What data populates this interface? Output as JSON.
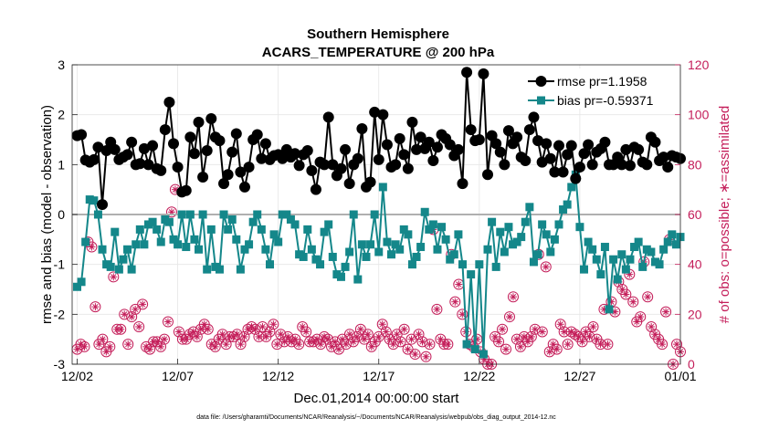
{
  "chart_data": {
    "type": "line",
    "title": "Southern Hemisphere",
    "subtitle": "ACARS_TEMPERATURE @ 200 hPa",
    "xlabel": "Dec.01,2014 00:00:00 start",
    "ylabel": "rmse and bias (model - observation)",
    "ylabel_right": "# of obs: o=possible; ∗=assimilated",
    "footnote": "data file: /Users/gharamti/Documents/NCAR/Reanalysis/~/Documents/NCAR/Reanalysis/webpub/obs_diag_output_2014-12.nc",
    "x_ticks": [
      "12/02",
      "12/07",
      "12/12",
      "12/17",
      "12/22",
      "12/27",
      "01/01"
    ],
    "x_tick_days": [
      2,
      7,
      12,
      17,
      22,
      27,
      32
    ],
    "xlim": [
      1.75,
      32
    ],
    "ylim": [
      -3,
      3
    ],
    "y_ticks": [
      "-3",
      "-2",
      "-1",
      "0",
      "1",
      "2",
      "3"
    ],
    "ylim_right": [
      0,
      120
    ],
    "y_ticks_right": [
      "0",
      "20",
      "40",
      "60",
      "80",
      "100",
      "120"
    ],
    "grid": true,
    "legend_position": "top-right",
    "zero_line": 0,
    "colors": {
      "rmse": "#000000",
      "bias": "#14878a",
      "obs": "#c41e5a",
      "zero": "#b0b0b0"
    },
    "series": [
      {
        "name": "rmse pr=1.1958",
        "color": "#000000",
        "marker": "circle",
        "values": [
          1.58,
          1.6,
          1.09,
          1.05,
          1.1,
          1.35,
          0.2,
          1.28,
          1.45,
          1.3,
          1.1,
          1.15,
          1.2,
          1.45,
          1.0,
          1.02,
          1.32,
          1.0,
          1.38,
          0.92,
          0.88,
          1.7,
          2.25,
          1.42,
          0.95,
          0.45,
          0.48,
          1.55,
          1.22,
          1.85,
          0.75,
          1.28,
          1.92,
          1.55,
          1.48,
          0.62,
          0.8,
          1.25,
          1.62,
          0.85,
          0.55,
          0.95,
          1.5,
          1.6,
          1.12,
          1.42,
          1.1,
          1.18,
          1.2,
          1.12,
          1.3,
          1.15,
          1.22,
          0.98,
          1.2,
          1.28,
          0.88,
          0.5,
          1.05,
          1.0,
          1.95,
          1.0,
          0.78,
          0.92,
          1.3,
          0.62,
          1.0,
          1.12,
          1.72,
          0.55,
          0.65,
          2.05,
          1.1,
          2.0,
          1.4,
          0.95,
          1.0,
          1.52,
          1.2,
          0.92,
          1.85,
          1.3,
          1.55,
          1.32,
          1.45,
          1.08,
          1.35,
          1.6,
          1.52,
          1.4,
          1.18,
          1.3,
          0.62,
          2.85,
          1.7,
          1.48,
          1.5,
          2.82,
          0.8,
          1.58,
          1.42,
          1.25,
          1.0,
          1.68,
          1.42,
          1.55,
          1.15,
          1.08,
          1.7,
          1.95,
          1.48,
          1.05,
          1.42,
          1.12,
          0.85,
          1.38,
          0.85,
          1.2,
          1.38,
          0.72,
          0.95,
          1.22,
          1.4,
          1.0,
          1.25,
          1.32,
          1.45,
          1.0,
          1.0,
          1.15,
          1.0,
          1.3,
          0.98,
          1.35,
          1.3,
          1.05,
          1.0,
          1.55,
          1.45,
          1.08,
          1.15,
          0.95,
          1.18,
          1.15,
          1.12
        ]
      },
      {
        "name": "bias pr=-0.59371",
        "color": "#14878a",
        "marker": "square",
        "values": [
          -1.45,
          -1.35,
          -0.55,
          0.3,
          0.28,
          0.0,
          -0.7,
          -1.0,
          -1.05,
          -0.35,
          -1.1,
          -0.9,
          -0.7,
          -1.1,
          -0.6,
          -0.3,
          -0.6,
          -0.2,
          -0.15,
          -0.3,
          -0.55,
          -0.1,
          -0.15,
          -0.5,
          -0.6,
          0.0,
          -0.65,
          0.0,
          -0.5,
          -0.7,
          0.0,
          -1.1,
          -0.3,
          -1.05,
          -1.1,
          0.0,
          -0.3,
          -0.1,
          -0.5,
          -1.1,
          -0.7,
          -0.6,
          -0.15,
          0.0,
          -0.3,
          -0.7,
          -1.0,
          -0.4,
          -0.55,
          0.0,
          0.0,
          -0.1,
          -0.2,
          -0.8,
          -0.85,
          -0.3,
          -0.7,
          -0.9,
          -1.0,
          -0.35,
          -0.2,
          -0.85,
          -1.2,
          -1.25,
          -1.05,
          -0.75,
          0.0,
          -1.3,
          -0.6,
          -0.85,
          -0.6,
          0.0,
          -0.75,
          0.55,
          -0.55,
          -0.8,
          -0.6,
          -0.7,
          -0.3,
          -0.4,
          -1.0,
          -0.85,
          -0.65,
          0.05,
          -0.3,
          -0.2,
          -0.7,
          -0.25,
          -0.5,
          -0.9,
          -0.8,
          -0.4,
          -1.0,
          -2.6,
          -1.2,
          -2.7,
          -1.0,
          -2.8,
          -0.7,
          -0.15,
          -1.05,
          -0.35,
          -0.75,
          -0.25,
          -0.6,
          -0.55,
          -0.45,
          -0.15,
          0.15,
          -0.95,
          -0.8,
          -0.2,
          -0.4,
          -0.75,
          -0.5,
          -0.2,
          0.1,
          0.2,
          0.55,
          0.8,
          -0.25,
          -1.1,
          -0.55,
          -0.7,
          -0.9,
          -1.2,
          -0.65,
          -1.9,
          -0.9,
          -1.3,
          -0.8,
          -1.1,
          -0.9,
          -0.65,
          -0.55,
          -1.05,
          -0.7,
          -0.75,
          -0.95,
          -1.0,
          -0.7,
          -0.55,
          -0.4,
          -0.6,
          -0.45
        ]
      },
      {
        "name": "# of obs possible",
        "color": "#c41e5a",
        "marker": "circle-open",
        "axis": "right",
        "values": [
          6,
          8,
          7,
          49,
          47,
          23,
          8,
          10,
          5,
          7,
          35,
          14,
          14,
          20,
          8,
          19,
          22,
          15,
          24,
          7,
          6,
          9,
          9,
          7,
          10,
          17,
          61,
          70,
          13,
          10,
          10,
          12,
          13,
          11,
          14,
          16,
          14,
          8,
          7,
          10,
          12,
          8,
          11,
          11,
          12,
          8,
          11,
          14,
          15,
          14,
          11,
          15,
          11,
          13,
          16,
          8,
          12,
          9,
          11,
          9,
          10,
          8,
          15,
          13,
          9,
          9,
          10,
          8,
          11,
          10,
          7,
          9,
          6,
          10,
          8,
          12,
          9,
          11,
          14,
          10,
          12,
          7,
          9,
          11,
          16,
          13,
          10,
          8,
          12,
          9,
          14,
          6,
          10,
          4,
          12,
          9,
          3,
          8,
          54,
          22,
          10,
          8,
          8,
          44,
          25,
          32,
          20,
          13,
          8,
          7,
          10,
          5,
          2,
          0,
          0,
          11,
          9,
          14,
          6,
          19,
          27,
          10,
          7,
          11,
          9,
          11,
          14,
          44,
          13,
          39,
          5,
          8,
          6,
          16,
          13,
          8,
          13,
          12,
          11,
          9,
          13,
          11,
          15,
          10,
          8,
          22,
          8,
          25,
          21,
          33,
          30,
          28,
          36,
          25,
          17,
          19,
          41,
          27,
          15,
          12,
          10,
          8,
          21,
          50,
          0,
          8,
          5
        ]
      },
      {
        "name": "# of obs assimilated",
        "color": "#c41e5a",
        "marker": "asterisk",
        "axis": "right",
        "values": [
          6,
          8,
          7,
          49,
          47,
          23,
          8,
          10,
          5,
          7,
          35,
          14,
          14,
          20,
          8,
          19,
          22,
          15,
          24,
          7,
          6,
          9,
          9,
          7,
          10,
          17,
          61,
          70,
          13,
          10,
          10,
          12,
          13,
          11,
          14,
          16,
          14,
          8,
          7,
          10,
          12,
          8,
          11,
          11,
          12,
          8,
          11,
          14,
          15,
          14,
          11,
          15,
          11,
          13,
          16,
          8,
          12,
          9,
          11,
          9,
          10,
          8,
          15,
          13,
          9,
          9,
          10,
          8,
          11,
          10,
          7,
          9,
          6,
          10,
          8,
          12,
          9,
          11,
          14,
          10,
          12,
          7,
          9,
          11,
          16,
          13,
          10,
          8,
          12,
          9,
          14,
          6,
          10,
          4,
          12,
          9,
          3,
          8,
          54,
          22,
          10,
          8,
          8,
          44,
          25,
          32,
          20,
          13,
          8,
          7,
          10,
          5,
          2,
          0,
          0,
          11,
          9,
          14,
          6,
          19,
          27,
          10,
          7,
          11,
          9,
          11,
          14,
          44,
          13,
          39,
          5,
          8,
          6,
          16,
          13,
          8,
          13,
          12,
          11,
          9,
          13,
          11,
          15,
          10,
          8,
          22,
          8,
          25,
          21,
          33,
          30,
          28,
          36,
          25,
          17,
          19,
          41,
          27,
          15,
          12,
          10,
          8,
          21,
          50,
          0,
          8,
          5
        ]
      }
    ]
  }
}
